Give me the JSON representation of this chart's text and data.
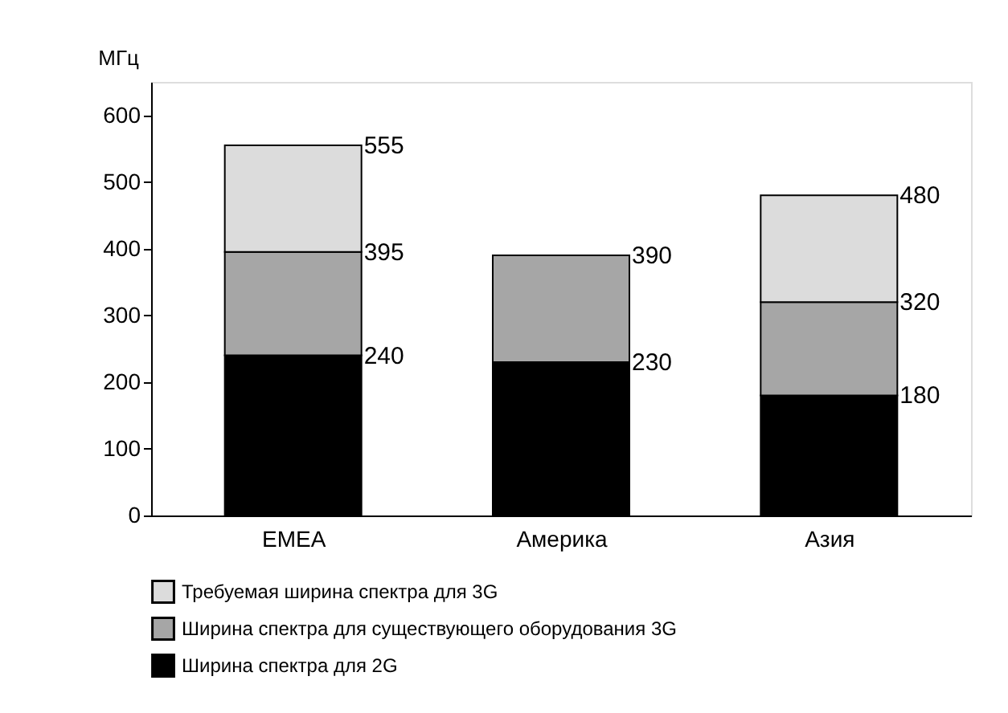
{
  "chart_data": {
    "type": "bar",
    "stacked": true,
    "ylabel": "МГц",
    "categories": [
      "EMEA",
      "Америка",
      "Азия"
    ],
    "series": [
      {
        "name": "Ширина спектра для 2G",
        "color": "#000000",
        "values": [
          240,
          230,
          180
        ]
      },
      {
        "name": "Ширина спектра для существующего оборудования 3G",
        "color": "#a6a6a6",
        "values": [
          155,
          160,
          140
        ]
      },
      {
        "name": "Требуемая ширина спектра для 3G",
        "color": "#dcdcdc",
        "values": [
          160,
          null,
          160
        ]
      }
    ],
    "annotations": [
      {
        "text": "240",
        "x": "EMEA",
        "y": 240
      },
      {
        "text": "395",
        "x": "EMEA",
        "y": 395
      },
      {
        "text": "555",
        "x": "EMEA",
        "y": 555
      },
      {
        "text": "230",
        "x": "Америка",
        "y": 230
      },
      {
        "text": "390",
        "x": "Америка",
        "y": 390
      },
      {
        "text": "180",
        "x": "Азия",
        "y": 180
      },
      {
        "text": "320",
        "x": "Азия",
        "y": 320
      },
      {
        "text": "480",
        "x": "Азия",
        "y": 480
      }
    ],
    "ylim": [
      0,
      650
    ],
    "yticks": [
      0,
      100,
      200,
      300,
      400,
      500,
      600
    ],
    "grid": false,
    "legend": "bottom left"
  }
}
